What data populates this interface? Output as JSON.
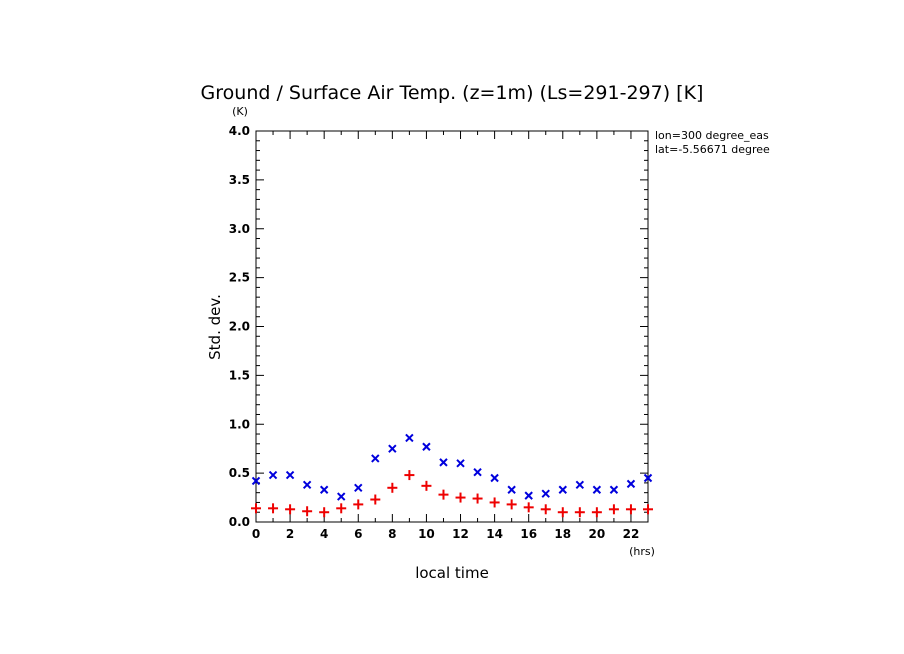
{
  "chart_data": {
    "type": "scatter",
    "title": "Ground / Surface Air Temp. (z=1m) (Ls=291-297) [K]",
    "xlabel": "local time",
    "ylabel": "Std. dev.",
    "x_unit": "(hrs)",
    "y_unit": "(K)",
    "xlim": [
      0,
      23
    ],
    "ylim": [
      0,
      4.0
    ],
    "x_ticks": [
      0,
      2,
      4,
      6,
      8,
      10,
      12,
      14,
      16,
      18,
      20,
      22
    ],
    "x_tick_labels": [
      "0",
      "2",
      "4",
      "6",
      "8",
      "10",
      "12",
      "14",
      "16",
      "18",
      "20",
      "22"
    ],
    "y_ticks": [
      0,
      0.5,
      1.0,
      1.5,
      2.0,
      2.5,
      3.0,
      3.5,
      4.0
    ],
    "y_tick_labels": [
      "0.0",
      "0.5",
      "1.0",
      "1.5",
      "2.0",
      "2.5",
      "3.0",
      "3.5",
      "4.0"
    ],
    "annotations": [
      "lon=300 degree_eas",
      "lat=-5.56671 degree"
    ],
    "grid": false,
    "x": [
      0,
      1,
      2,
      3,
      4,
      5,
      6,
      7,
      8,
      9,
      10,
      11,
      12,
      13,
      14,
      15,
      16,
      17,
      18,
      19,
      20,
      21,
      22,
      23
    ],
    "series": [
      {
        "marker": "x",
        "color": "#0000dd",
        "values": [
          0.42,
          0.48,
          0.48,
          0.38,
          0.33,
          0.26,
          0.35,
          0.65,
          0.75,
          0.86,
          0.77,
          0.61,
          0.6,
          0.51,
          0.45,
          0.33,
          0.27,
          0.29,
          0.33,
          0.38,
          0.33,
          0.33,
          0.39,
          0.45
        ]
      },
      {
        "marker": "+",
        "color": "#ee0000",
        "values": [
          0.14,
          0.14,
          0.13,
          0.11,
          0.1,
          0.14,
          0.18,
          0.23,
          0.35,
          0.48,
          0.37,
          0.28,
          0.25,
          0.24,
          0.2,
          0.18,
          0.15,
          0.13,
          0.1,
          0.1,
          0.1,
          0.13,
          0.13,
          0.13
        ]
      }
    ]
  }
}
